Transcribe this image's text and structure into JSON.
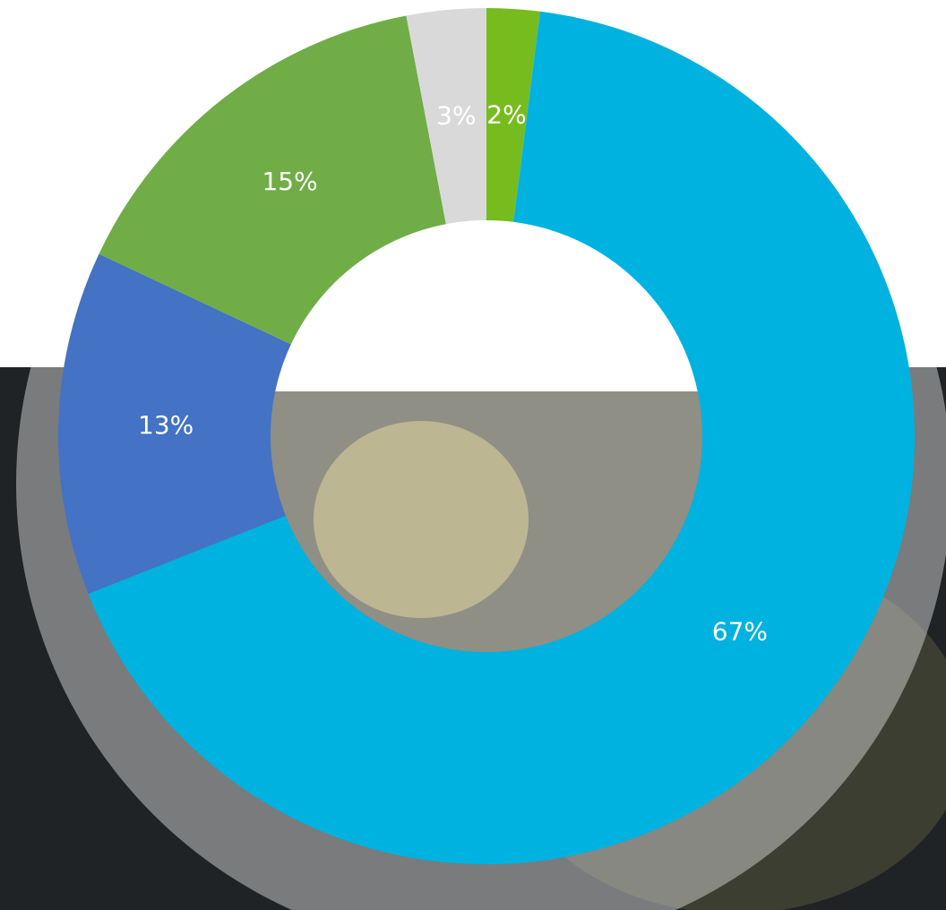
{
  "chart_data": {
    "type": "donut",
    "values": [
      2,
      67,
      13,
      15,
      3
    ],
    "value_labels": [
      "2%",
      "67%",
      "13%",
      "15%",
      "3%"
    ],
    "colors": [
      "#77bc1f",
      "#00b2e0",
      "#4472c4",
      "#70ad47",
      "#d9d9d9"
    ]
  }
}
